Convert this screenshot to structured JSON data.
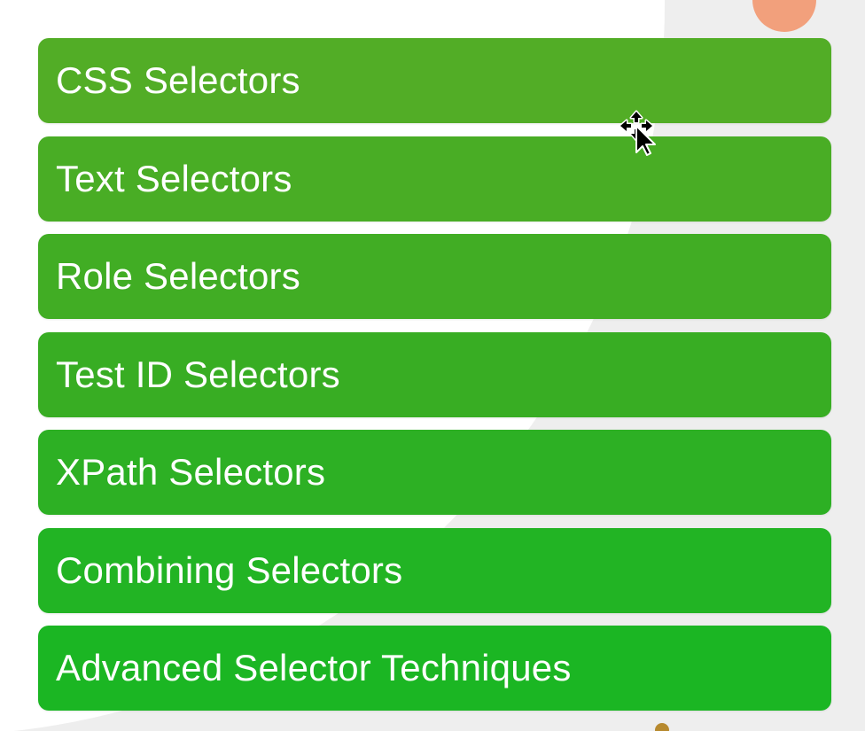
{
  "selectors": {
    "items": [
      {
        "label": "CSS Selectors",
        "color": "#52ad26"
      },
      {
        "label": "Text Selectors",
        "color": "#49ad25"
      },
      {
        "label": "Role Selectors",
        "color": "#41ad24"
      },
      {
        "label": "Test ID Selectors",
        "color": "#38ad23"
      },
      {
        "label": "XPath Selectors",
        "color": "#2db024"
      },
      {
        "label": "Combining Selectors",
        "color": "#22b424"
      },
      {
        "label": "Advanced Selector Techniques",
        "color": "#1bb623"
      }
    ]
  },
  "decor": {
    "orange_dot_color": "#f2a07c",
    "brown_dot_color": "#b78a2f",
    "background_color": "#eeeeee"
  },
  "cursor": {
    "icon": "move-cursor-icon"
  }
}
